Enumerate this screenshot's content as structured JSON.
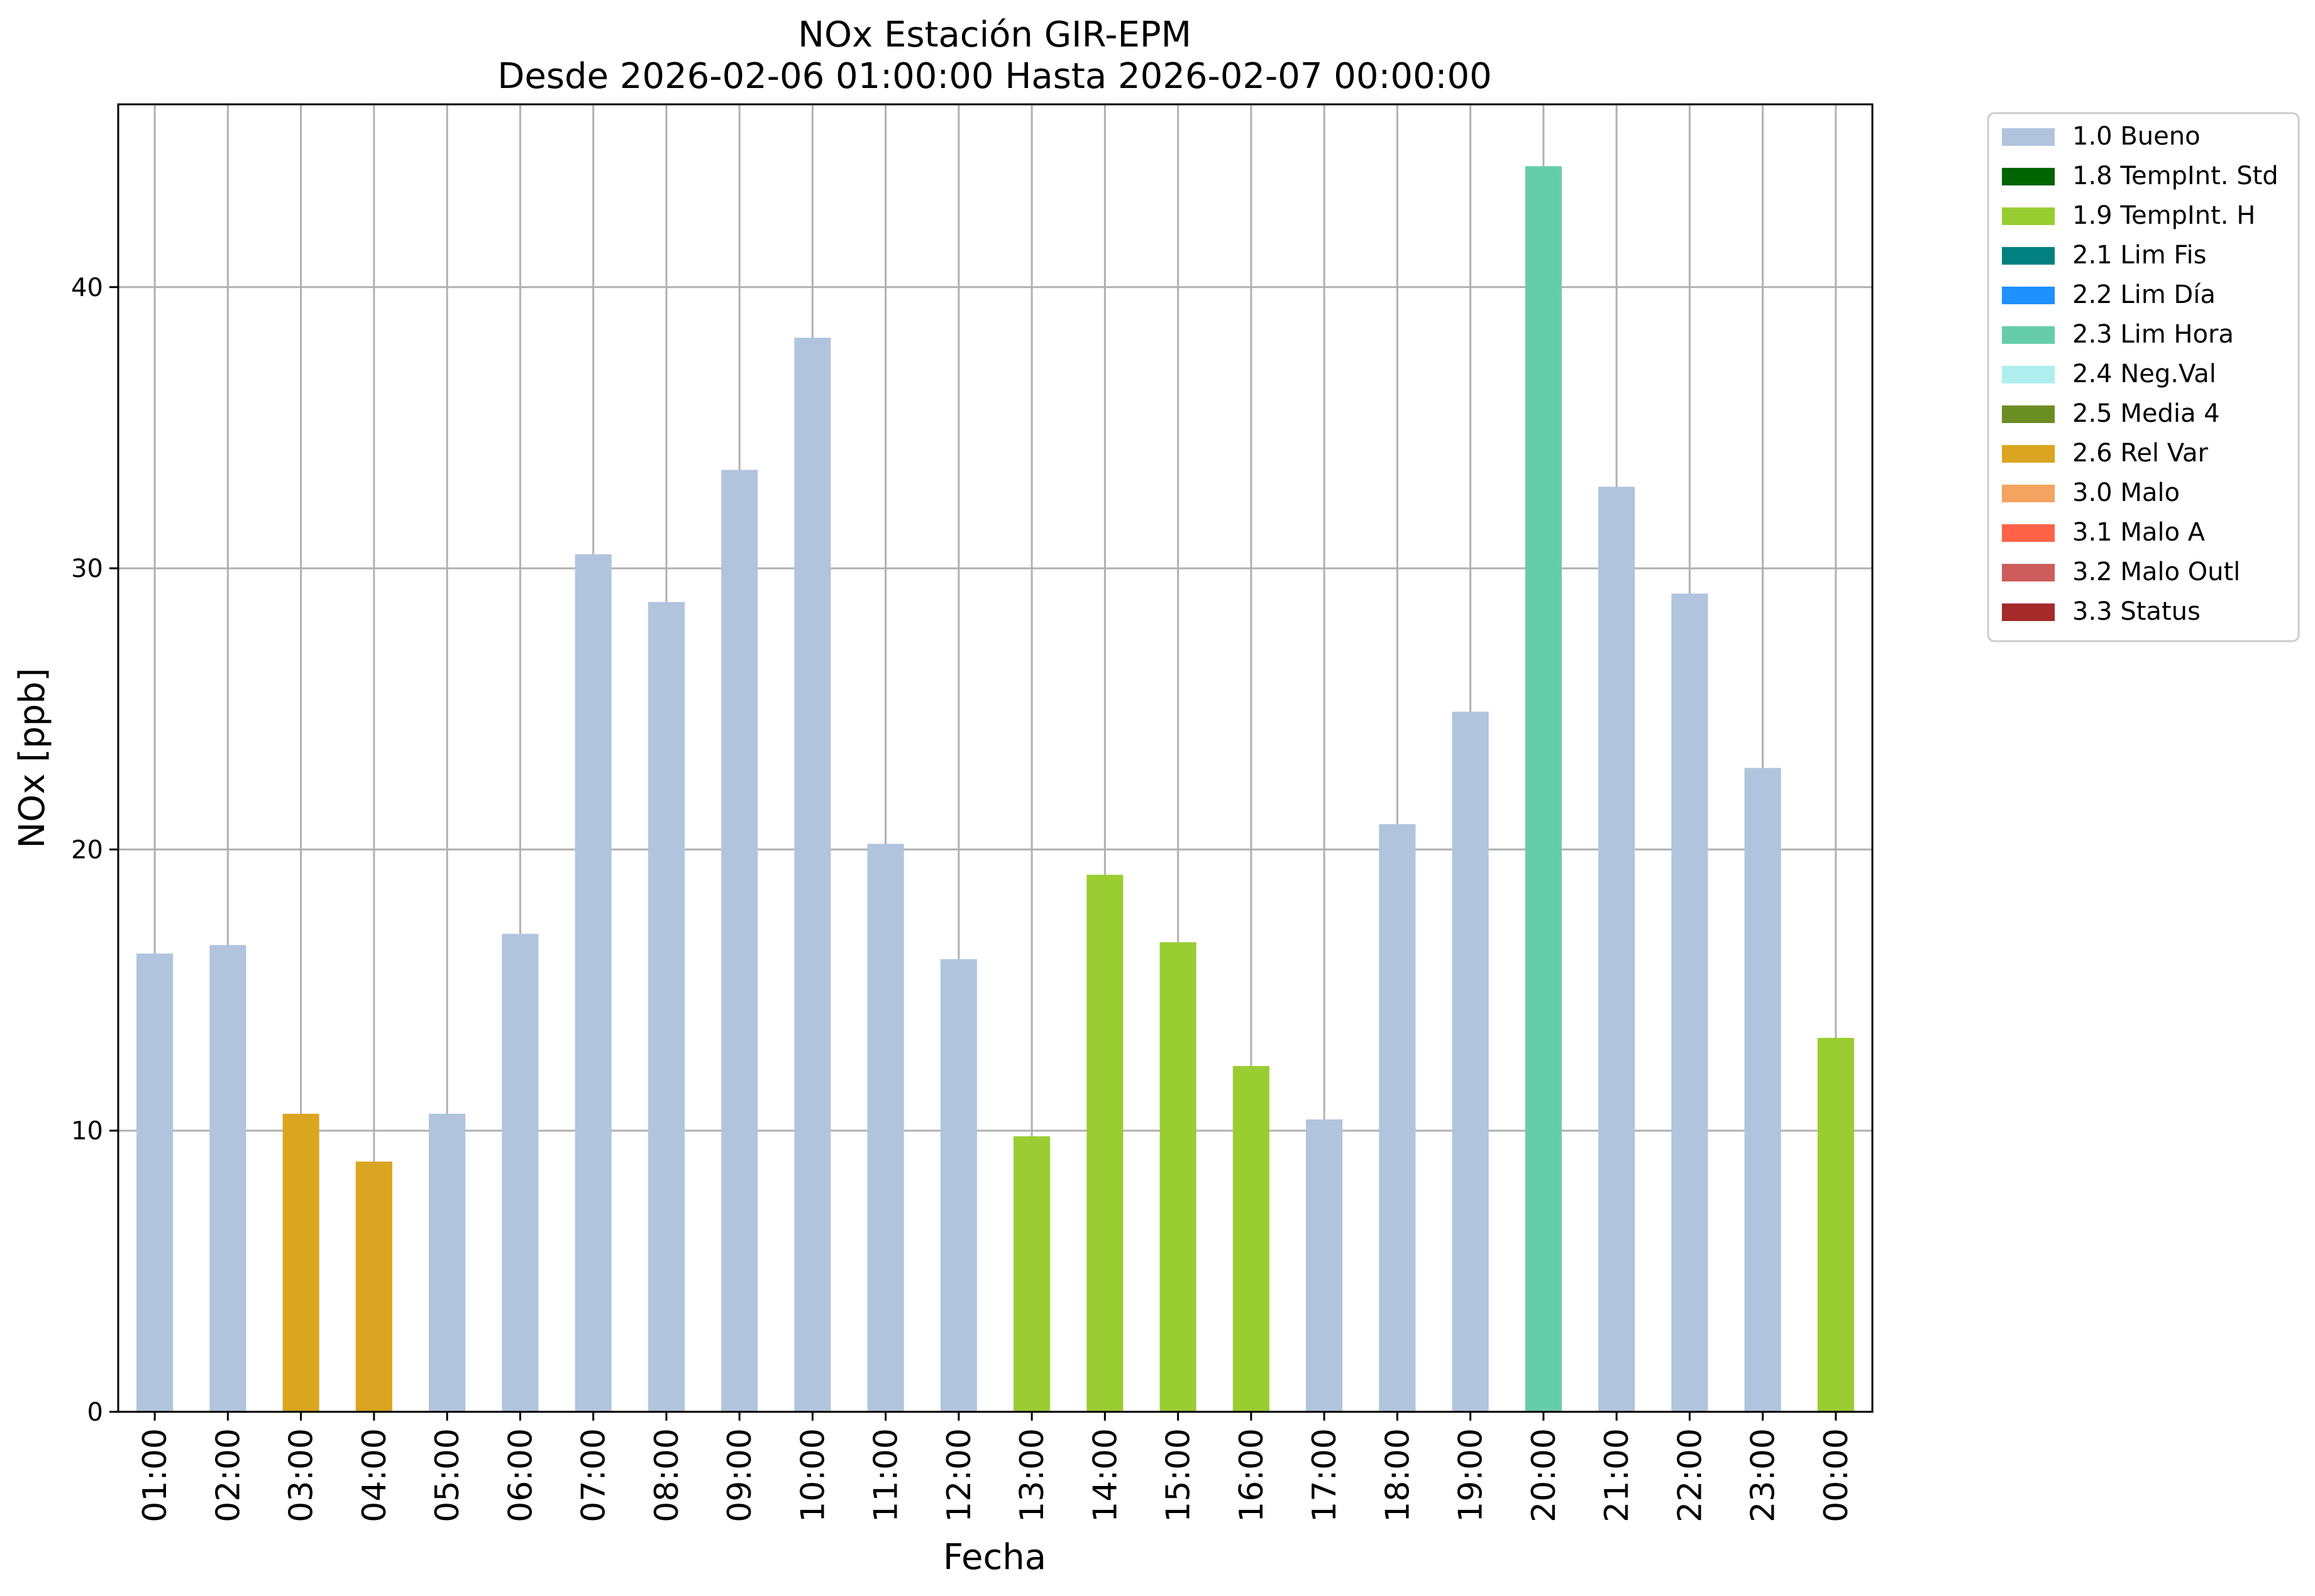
{
  "chart_data": {
    "type": "bar",
    "title": "NOx Estación GIR-EPM",
    "subtitle": "Desde 2026-02-06 01:00:00 Hasta 2026-02-07 00:00:00",
    "xlabel": "Fecha",
    "ylabel": "NOx [ppb]",
    "ylim": [
      0,
      46.5
    ],
    "yticks": [
      0,
      10,
      20,
      30,
      40
    ],
    "grid": true,
    "legend_position": "outside-right",
    "categories": [
      "01:00",
      "02:00",
      "03:00",
      "04:00",
      "05:00",
      "06:00",
      "07:00",
      "08:00",
      "09:00",
      "10:00",
      "11:00",
      "12:00",
      "13:00",
      "14:00",
      "15:00",
      "16:00",
      "17:00",
      "18:00",
      "19:00",
      "20:00",
      "21:00",
      "22:00",
      "23:00",
      "00:00"
    ],
    "values": [
      16.3,
      16.6,
      10.6,
      8.9,
      10.6,
      17.0,
      30.5,
      28.8,
      33.5,
      38.2,
      20.2,
      16.1,
      9.8,
      19.1,
      16.7,
      12.3,
      10.4,
      20.9,
      24.9,
      44.3,
      32.9,
      29.1,
      22.9,
      13.3
    ],
    "flags": [
      "1.0 Bueno",
      "1.0 Bueno",
      "2.6 Rel Var",
      "2.6 Rel Var",
      "1.0 Bueno",
      "1.0 Bueno",
      "1.0 Bueno",
      "1.0 Bueno",
      "1.0 Bueno",
      "1.0 Bueno",
      "1.0 Bueno",
      "1.0 Bueno",
      "1.9 TempInt. H",
      "1.9 TempInt. H",
      "1.9 TempInt. H",
      "1.9 TempInt. H",
      "1.0 Bueno",
      "1.0 Bueno",
      "1.0 Bueno",
      "2.3 Lim Hora",
      "1.0 Bueno",
      "1.0 Bueno",
      "1.0 Bueno",
      "1.9 TempInt. H"
    ],
    "legend": [
      {
        "label": "1.0 Bueno",
        "color": "#b0c4de"
      },
      {
        "label": "1.8 TempInt. Std",
        "color": "#006400"
      },
      {
        "label": "1.9 TempInt. H",
        "color": "#9acd32"
      },
      {
        "label": "2.1 Lim Fis",
        "color": "#008080"
      },
      {
        "label": "2.2 Lim Día",
        "color": "#1e90ff"
      },
      {
        "label": "2.3 Lim Hora",
        "color": "#66cdaa"
      },
      {
        "label": "2.4 Neg.Val",
        "color": "#afeeee"
      },
      {
        "label": "2.5 Media 4",
        "color": "#6b8e23"
      },
      {
        "label": "2.6 Rel Var",
        "color": "#daa520"
      },
      {
        "label": "3.0 Malo",
        "color": "#f4a460"
      },
      {
        "label": "3.1 Malo A",
        "color": "#ff6347"
      },
      {
        "label": "3.2 Malo Outl",
        "color": "#cd5c5c"
      },
      {
        "label": "3.3 Status",
        "color": "#a52a2a"
      }
    ]
  }
}
